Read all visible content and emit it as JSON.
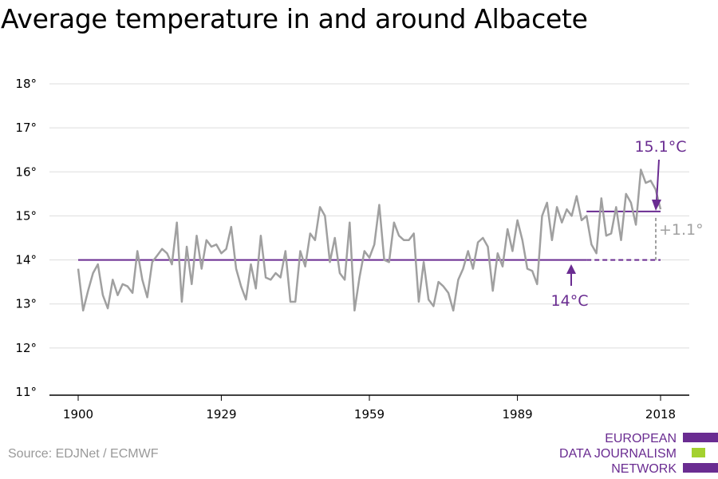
{
  "title": "Average temperature in and around Albacete",
  "source": "Source: EDJNet / ECMWF",
  "logo": {
    "lines": [
      "EUROPEAN",
      "DATA JOURNALISM",
      "NETWORK"
    ],
    "colors": [
      "#6a2c91",
      "#a3d12f",
      "#6a2c91"
    ]
  },
  "colors": {
    "series": "#a0a0a0",
    "accent": "#6a2c91",
    "delta": "#a0a0a0",
    "grid": "#dddddd"
  },
  "chart_data": {
    "type": "line",
    "x_ticks": [
      "1900",
      "1929",
      "1959",
      "1989",
      "2018"
    ],
    "y_ticks": [
      "11°",
      "12°",
      "13°",
      "14°",
      "15°",
      "16°",
      "17°",
      "18°"
    ],
    "xlim": [
      1900,
      2018
    ],
    "ylim": [
      11,
      18
    ],
    "grid": true,
    "series": [
      {
        "x": [
          1900,
          1901,
          1902,
          1903,
          1904,
          1905,
          1906,
          1907,
          1908,
          1909,
          1910,
          1911,
          1912,
          1913,
          1914,
          1915,
          1916,
          1917,
          1918,
          1919,
          1920,
          1921,
          1922,
          1923,
          1924,
          1925,
          1926,
          1927,
          1928,
          1929,
          1930,
          1931,
          1932,
          1933,
          1934,
          1935,
          1936,
          1937,
          1938,
          1939,
          1940,
          1941,
          1942,
          1943,
          1944,
          1945,
          1946,
          1947,
          1948,
          1949,
          1950,
          1951,
          1952,
          1953,
          1954,
          1955,
          1956,
          1957,
          1958,
          1959,
          1960,
          1961,
          1962,
          1963,
          1964,
          1965,
          1966,
          1967,
          1968,
          1969,
          1970,
          1971,
          1972,
          1973,
          1974,
          1975,
          1976,
          1977,
          1978,
          1979,
          1980,
          1981,
          1982,
          1983,
          1984,
          1985,
          1986,
          1987,
          1988,
          1989,
          1990,
          1991,
          1992,
          1993,
          1994,
          1995,
          1996,
          1997,
          1998,
          1999,
          2000,
          2001,
          2002,
          2003,
          2004,
          2005,
          2006,
          2007,
          2008,
          2009,
          2010,
          2011,
          2012,
          2013,
          2014,
          2015,
          2016,
          2017,
          2018
        ],
        "y": [
          13.8,
          12.85,
          13.3,
          13.7,
          13.9,
          13.2,
          12.9,
          13.55,
          13.2,
          13.45,
          13.4,
          13.25,
          14.2,
          13.55,
          13.15,
          13.95,
          14.1,
          14.25,
          14.15,
          13.9,
          14.85,
          13.05,
          14.3,
          13.45,
          14.55,
          13.8,
          14.45,
          14.3,
          14.35,
          14.15,
          14.25,
          14.75,
          13.8,
          13.4,
          13.1,
          13.9,
          13.35,
          14.55,
          13.6,
          13.55,
          13.7,
          13.6,
          14.2,
          13.05,
          13.05,
          14.2,
          13.85,
          14.6,
          14.45,
          15.2,
          15.0,
          13.95,
          14.5,
          13.7,
          13.55,
          14.85,
          12.85,
          13.6,
          14.2,
          14.05,
          14.35,
          15.25,
          14.0,
          13.95,
          14.85,
          14.55,
          14.45,
          14.45,
          14.6,
          13.05,
          13.95,
          13.1,
          12.95,
          13.5,
          13.4,
          13.25,
          12.85,
          13.55,
          13.8,
          14.2,
          13.8,
          14.4,
          14.5,
          14.3,
          13.3,
          14.15,
          13.85,
          14.7,
          14.2,
          14.9,
          14.45,
          13.8,
          13.75,
          13.45,
          15.0,
          15.3,
          14.45,
          15.2,
          14.85,
          15.15,
          15.0,
          15.45,
          14.9,
          15.0,
          14.35,
          14.15,
          15.4,
          14.55,
          14.6,
          15.2,
          14.45,
          15.5,
          15.3,
          14.8,
          16.05,
          15.75,
          15.8,
          15.6,
          15.15
        ]
      }
    ],
    "baseline": {
      "value": 14.0,
      "from": 1900,
      "to": 2003,
      "label": "14°C"
    },
    "recent_mean": {
      "value": 15.1,
      "from": 2003,
      "to": 2018,
      "label": "15.1°C"
    },
    "delta_label": "+1.1°"
  }
}
